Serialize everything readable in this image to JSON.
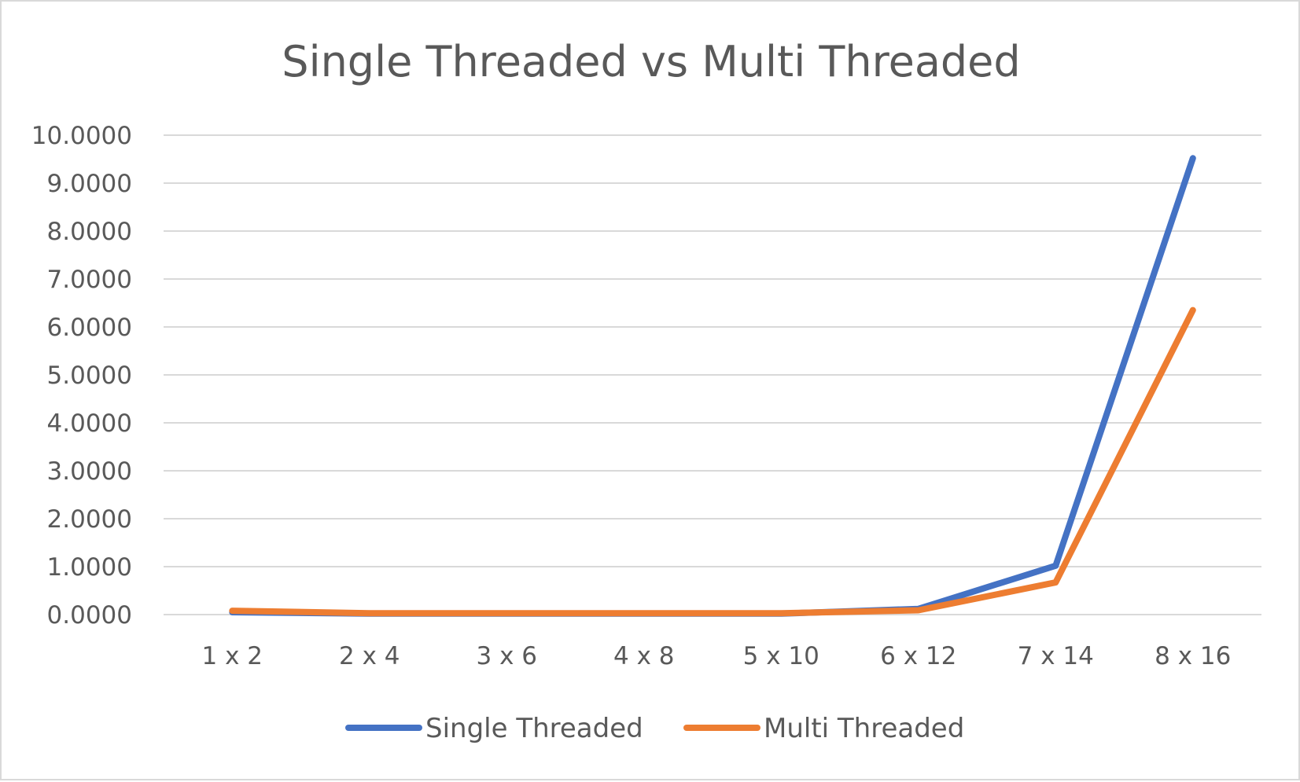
{
  "chart_data": {
    "type": "line",
    "title": "Single Threaded vs Multi Threaded",
    "xlabel": "",
    "ylabel": "",
    "categories": [
      "1 x 2",
      "2 x 4",
      "3 x 6",
      "4 x 8",
      "5 x 10",
      "6 x 12",
      "7 x 14",
      "8 x 16"
    ],
    "series": [
      {
        "name": "Single Threaded",
        "color": "#4472c4",
        "values": [
          0.05,
          0.02,
          0.02,
          0.02,
          0.02,
          0.12,
          1.02,
          9.52
        ]
      },
      {
        "name": "Multi Threaded",
        "color": "#ed7d31",
        "values": [
          0.08,
          0.03,
          0.03,
          0.03,
          0.03,
          0.09,
          0.67,
          6.35
        ]
      }
    ],
    "ylim": [
      0,
      10
    ],
    "y_ticks": [
      "0.0000",
      "1.0000",
      "2.0000",
      "3.0000",
      "4.0000",
      "5.0000",
      "6.0000",
      "7.0000",
      "8.0000",
      "9.0000",
      "10.0000"
    ],
    "grid": true,
    "legend_position": "bottom"
  }
}
